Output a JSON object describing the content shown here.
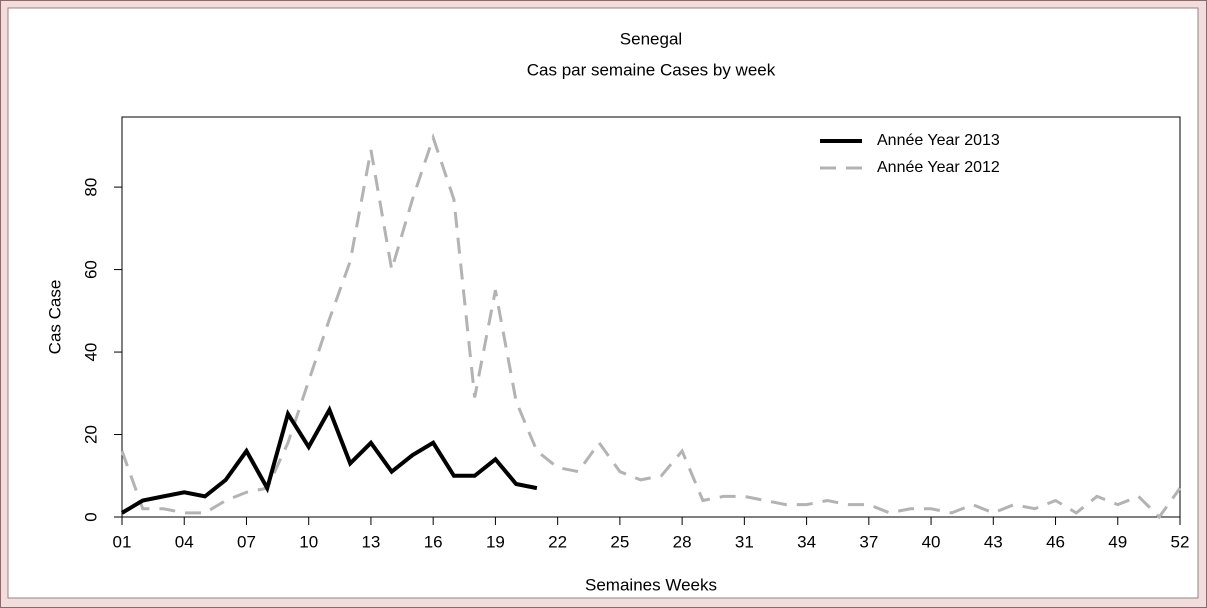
{
  "chart_data": {
    "type": "line",
    "title": "Senegal",
    "subtitle": "Cas par semaine Cases by week",
    "x_label": "Semaines Weeks",
    "y_label": "Cas Case",
    "xlim": [
      1,
      52
    ],
    "ylim": [
      0,
      97
    ],
    "xticks": [
      {
        "value": 1,
        "label": "01"
      },
      {
        "value": 4,
        "label": "04"
      },
      {
        "value": 7,
        "label": "07"
      },
      10,
      13,
      16,
      19,
      22,
      25,
      28,
      31,
      34,
      37,
      40,
      43,
      46,
      49,
      52
    ],
    "yticks": [
      0,
      20,
      40,
      60,
      80
    ],
    "legend": "top-right",
    "series": [
      {
        "name": "Année Year 2013",
        "color": "#000000",
        "style": "solid",
        "x": [
          1,
          2,
          3,
          4,
          5,
          6,
          7,
          8,
          9,
          10,
          11,
          12,
          13,
          14,
          15,
          16,
          17,
          18,
          19,
          20,
          21
        ],
        "values": [
          1,
          4,
          5,
          6,
          5,
          9,
          16,
          7,
          25,
          17,
          26,
          13,
          18,
          11,
          15,
          18,
          10,
          10,
          14,
          8,
          7
        ]
      },
      {
        "name": "Année Year 2012",
        "color": "#b3b3b3",
        "style": "dashed",
        "x": [
          1,
          2,
          3,
          4,
          5,
          6,
          7,
          8,
          9,
          10,
          11,
          12,
          13,
          14,
          15,
          16,
          17,
          18,
          19,
          20,
          21,
          22,
          23,
          24,
          25,
          26,
          27,
          28,
          29,
          30,
          31,
          32,
          33,
          34,
          35,
          36,
          37,
          38,
          39,
          40,
          41,
          42,
          43,
          44,
          45,
          46,
          47,
          48,
          49,
          50,
          51,
          52
        ],
        "values": [
          16,
          2,
          2,
          1,
          1,
          4,
          6,
          7,
          18,
          33,
          48,
          62,
          89,
          60,
          77,
          92,
          77,
          29,
          55,
          28,
          16,
          12,
          11,
          18,
          11,
          9,
          10,
          16,
          4,
          5,
          5,
          4,
          3,
          3,
          4,
          3,
          3,
          1,
          2,
          2,
          1,
          3,
          1,
          3,
          2,
          4,
          1,
          5,
          3,
          5,
          0,
          7
        ]
      }
    ]
  }
}
